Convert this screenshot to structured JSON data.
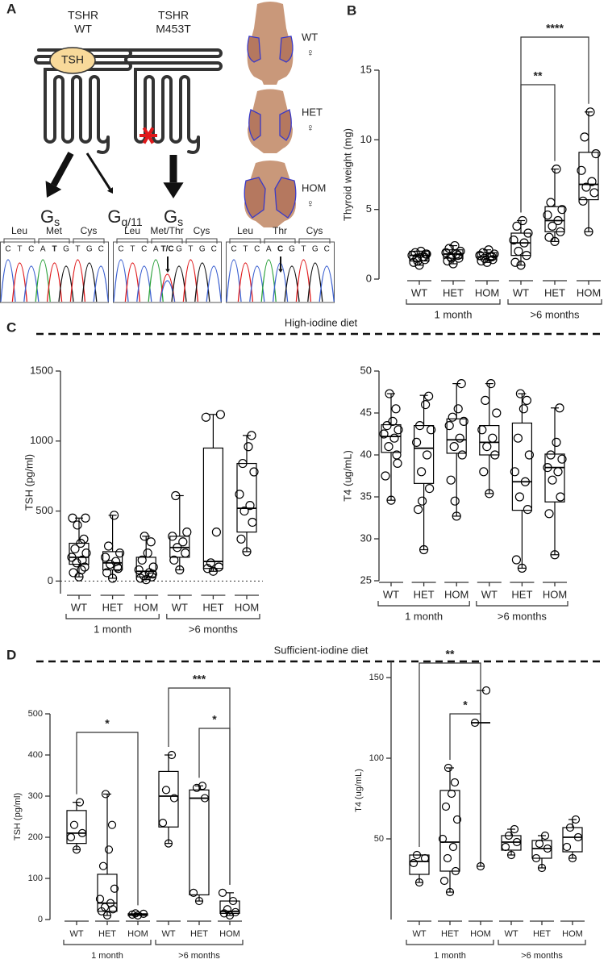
{
  "panel_a": {
    "label": "A",
    "receptors": [
      {
        "lines": [
          "TSHR",
          "WT"
        ],
        "ligand": "TSH",
        "signals": [
          {
            "main": "G",
            "sub": "s"
          },
          {
            "main": "G",
            "sub": "q/11"
          }
        ]
      },
      {
        "lines": [
          "TSHR",
          "M453T"
        ],
        "signals": [
          {
            "main": "G",
            "sub": "s"
          }
        ]
      }
    ],
    "tissues": [
      {
        "genotype": "WT",
        "sex": "♀"
      },
      {
        "genotype": "HET",
        "sex": "♀"
      },
      {
        "genotype": "HOM",
        "sex": "♀"
      }
    ],
    "chromatograms": [
      {
        "codons": [
          "Leu",
          "Met",
          "Cys"
        ],
        "bases": [
          "C",
          "T",
          "C",
          "A",
          "T",
          "G",
          "T",
          "G",
          "C"
        ]
      },
      {
        "codons": [
          "Leu",
          "Met/Thr",
          "Cys"
        ],
        "bases": [
          "C",
          "T",
          "C",
          "A",
          "T/C",
          "G",
          "T",
          "G",
          "C"
        ]
      },
      {
        "codons": [
          "Leu",
          "Thr",
          "Cys"
        ],
        "bases": [
          "C",
          "T",
          "C",
          "A",
          "C",
          "G",
          "T",
          "G",
          "C"
        ]
      }
    ]
  },
  "sections": [
    {
      "label": "C",
      "title": "High-iodine diet"
    },
    {
      "label": "D",
      "title": "Sufficient-iodine diet"
    }
  ],
  "chart_data": [
    {
      "type": "box",
      "panel": "B",
      "ylabel": "Thyroid weight (mg)",
      "categories": [
        "WT",
        "HET",
        "HOM",
        "WT",
        "HET",
        "HOM"
      ],
      "groups": [
        "1 month",
        ">6 months"
      ],
      "ylim": [
        0,
        15
      ],
      "yticks": [
        0,
        5,
        10,
        15
      ],
      "color": "#000000",
      "boxes": [
        {
          "values": [
            1.0,
            1.2,
            1.4,
            1.5,
            1.6,
            1.7,
            1.8,
            1.9,
            2.0,
            1.6,
            1.3,
            1.8
          ],
          "box": [
            1.0,
            1.3,
            1.7,
            2.0,
            2.0
          ]
        },
        {
          "values": [
            1.1,
            1.3,
            1.5,
            1.6,
            1.8,
            1.9,
            2.0,
            2.2,
            2.4,
            1.7,
            1.5
          ],
          "box": [
            1.1,
            1.5,
            1.8,
            2.1,
            2.4
          ]
        },
        {
          "values": [
            1.2,
            1.3,
            1.4,
            1.5,
            1.6,
            1.7,
            1.8,
            1.9,
            2.1,
            1.6
          ],
          "box": [
            1.2,
            1.4,
            1.6,
            1.9,
            2.1
          ]
        },
        {
          "values": [
            1.0,
            1.2,
            1.7,
            2.0,
            2.6,
            2.8,
            3.3,
            3.8,
            4.2
          ],
          "box": [
            1.0,
            1.7,
            2.6,
            3.3,
            4.2
          ]
        },
        {
          "values": [
            2.7,
            3.0,
            3.4,
            3.8,
            4.2,
            4.6,
            5.0,
            5.5,
            7.9
          ],
          "box": [
            2.7,
            3.4,
            4.2,
            5.2,
            7.9
          ]
        },
        {
          "values": [
            3.4,
            5.6,
            6.2,
            6.6,
            7.0,
            7.8,
            9.0,
            10.2,
            12.0
          ],
          "box": [
            3.4,
            5.7,
            6.8,
            9.1,
            12.0
          ]
        }
      ],
      "significance": [
        {
          "label": "**"
        },
        {
          "label": "****"
        }
      ]
    },
    {
      "type": "box",
      "ylabel": "TSH (pg/ml)",
      "categories": [
        "WT",
        "HET",
        "HOM",
        "WT",
        "HET",
        "HOM"
      ],
      "groups": [
        "1 month",
        ">6 months"
      ],
      "ylim": [
        -90,
        1500
      ],
      "yticks": [
        0,
        500,
        1000,
        1500
      ],
      "color": "#000000",
      "zero_line": true,
      "boxes": [
        {
          "values": [
            30,
            60,
            100,
            130,
            150,
            170,
            200,
            230,
            270,
            300,
            400,
            450,
            450,
            80
          ],
          "box": [
            30,
            120,
            170,
            270,
            450
          ]
        },
        {
          "values": [
            20,
            60,
            90,
            120,
            140,
            170,
            200,
            250,
            470,
            100
          ],
          "box": [
            20,
            80,
            130,
            210,
            470
          ]
        },
        {
          "values": [
            10,
            20,
            30,
            40,
            60,
            80,
            100,
            150,
            200,
            280,
            320,
            50
          ],
          "box": [
            10,
            30,
            70,
            170,
            320
          ]
        },
        {
          "values": [
            80,
            150,
            200,
            240,
            280,
            320,
            350,
            610
          ],
          "box": [
            80,
            170,
            240,
            320,
            610
          ]
        },
        {
          "values": [
            70,
            90,
            100,
            130,
            350,
            1170,
            1190
          ],
          "box": [
            70,
            90,
            140,
            950,
            1190
          ]
        },
        {
          "values": [
            210,
            300,
            420,
            500,
            540,
            620,
            780,
            840,
            960,
            1040
          ],
          "box": [
            210,
            350,
            520,
            840,
            1040
          ]
        }
      ]
    },
    {
      "type": "box",
      "ylabel": "T4 (ug/mL)",
      "categories": [
        "WT",
        "HET",
        "HOM",
        "WT",
        "HET",
        "HOM"
      ],
      "groups": [
        "1 month",
        ">6 months"
      ],
      "ylim": [
        25,
        50
      ],
      "yticks": [
        25,
        30,
        35,
        40,
        45,
        50
      ],
      "color": "#000000",
      "boxes": [
        {
          "values": [
            34.6,
            37.5,
            40,
            41,
            42,
            42.5,
            43,
            43.5,
            44,
            45.5,
            47.3,
            39
          ],
          "box": [
            34.6,
            40.3,
            42.2,
            43.6,
            47.3
          ]
        },
        {
          "values": [
            28.7,
            33.5,
            36,
            38,
            40,
            41.5,
            43,
            43.5,
            46,
            47,
            34.5
          ],
          "box": [
            28.7,
            36.6,
            40.8,
            43.5,
            47.1
          ]
        },
        {
          "values": [
            32.7,
            37,
            40,
            41,
            42,
            43.5,
            44,
            44.5,
            45.5,
            48.5,
            34.5
          ],
          "box": [
            32.7,
            40.2,
            41.8,
            44.3,
            48.5
          ]
        },
        {
          "values": [
            35.4,
            38,
            40,
            41,
            42,
            43,
            45,
            46.5,
            48.5
          ],
          "box": [
            35.4,
            40,
            41.5,
            43.5,
            48.5
          ]
        },
        {
          "values": [
            26.5,
            27.5,
            33.5,
            35,
            36.8,
            38,
            40,
            42,
            45.5,
            46.5,
            47.3
          ],
          "box": [
            26.5,
            33.4,
            36.8,
            43.8,
            47.3
          ]
        },
        {
          "values": [
            28.1,
            33,
            35,
            37,
            38,
            38.5,
            39.5,
            40,
            41.5,
            45.6
          ],
          "box": [
            28.1,
            34.4,
            38.5,
            40.1,
            45.6
          ]
        }
      ]
    },
    {
      "type": "box",
      "ylabel": "TSH (pg/ml)",
      "categories": [
        "WT",
        "HET",
        "HOM",
        "WT",
        "HET",
        "HOM"
      ],
      "groups": [
        "1 month",
        ">6 months"
      ],
      "ylim": [
        0,
        500
      ],
      "yticks": [
        0,
        100,
        200,
        300,
        400,
        500
      ],
      "color": "#000000",
      "boxes": [
        {
          "values": [
            170,
            200,
            210,
            230,
            285
          ],
          "box": [
            170,
            185,
            210,
            265,
            285
          ]
        },
        {
          "values": [
            10,
            20,
            25,
            30,
            40,
            50,
            75,
            130,
            170,
            230,
            305
          ],
          "box": [
            10,
            20,
            40,
            110,
            305
          ]
        },
        {
          "values": [
            10,
            12,
            14,
            15
          ],
          "box": [
            10,
            10,
            12,
            14,
            15
          ]
        },
        {
          "values": [
            185,
            235,
            295,
            315,
            400
          ],
          "box": [
            185,
            225,
            300,
            360,
            400
          ]
        },
        {
          "values": [
            45,
            65,
            295,
            320,
            325
          ],
          "box": [
            45,
            60,
            295,
            315,
            325
          ]
        },
        {
          "values": [
            10,
            15,
            18,
            25,
            45,
            65
          ],
          "box": [
            10,
            15,
            20,
            45,
            65
          ]
        }
      ],
      "significance": [
        {
          "label": "*"
        },
        {
          "label": "***"
        },
        {
          "label": "*"
        }
      ]
    },
    {
      "type": "box",
      "ylabel": "T4 (ug/mL)",
      "categories": [
        "WT",
        "HET",
        "HOM",
        "WT",
        "HET",
        "HOM"
      ],
      "groups": [
        "1 month",
        ">6 months"
      ],
      "ylim": [
        0,
        160
      ],
      "yticks": [
        50,
        100,
        150
      ],
      "color": "#000000",
      "boxes": [
        {
          "values": [
            23,
            35,
            38,
            40
          ],
          "box": [
            23,
            28,
            36,
            40,
            40
          ]
        },
        {
          "values": [
            17,
            24,
            30,
            38,
            45,
            50,
            62,
            70,
            78,
            85,
            94
          ],
          "box": [
            17,
            30,
            48,
            80,
            94
          ]
        },
        {
          "values": [
            33,
            122,
            142
          ],
          "box": [
            33,
            122,
            122,
            122,
            142
          ]
        },
        {
          "values": [
            40,
            45,
            48,
            52,
            56
          ],
          "box": [
            40,
            43,
            48,
            52,
            56
          ]
        },
        {
          "values": [
            32,
            38,
            44,
            47,
            52
          ],
          "box": [
            32,
            38,
            44,
            49,
            52
          ]
        },
        {
          "values": [
            38,
            45,
            51,
            57,
            62
          ],
          "box": [
            38,
            42,
            51,
            57,
            62
          ]
        }
      ],
      "significance": [
        {
          "label": "**"
        },
        {
          "label": "*"
        }
      ]
    }
  ]
}
